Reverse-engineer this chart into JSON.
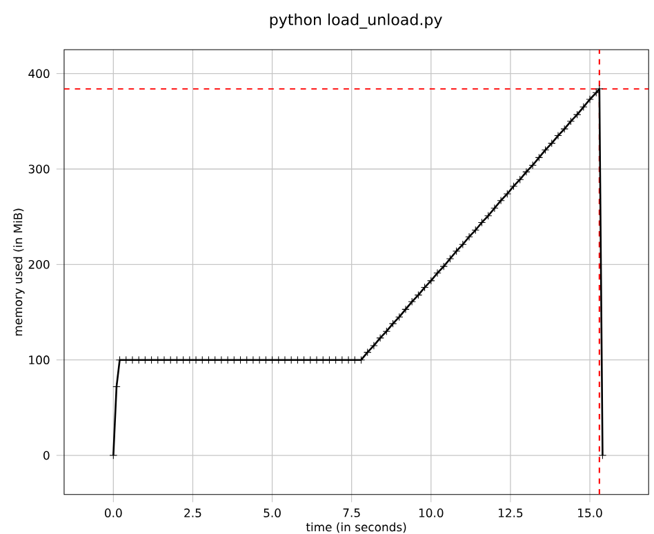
{
  "chart_data": {
    "type": "line",
    "title": "python load_unload.py",
    "xlabel": "time (in seconds)",
    "ylabel": "memory used (in MiB)",
    "x": [
      0,
      0.1,
      0.2,
      0.4,
      0.6,
      0.8,
      1.0,
      1.2,
      1.4,
      1.6,
      1.8,
      2.0,
      2.2,
      2.4,
      2.6,
      2.8,
      3.0,
      3.2,
      3.4,
      3.6,
      3.8,
      4.0,
      4.2,
      4.4,
      4.6,
      4.8,
      5.0,
      5.2,
      5.4,
      5.6,
      5.8,
      6.0,
      6.2,
      6.4,
      6.6,
      6.8,
      7.0,
      7.2,
      7.4,
      7.6,
      7.8,
      8.0,
      8.2,
      8.4,
      8.6,
      8.8,
      9.0,
      9.2,
      9.4,
      9.6,
      9.8,
      10.0,
      10.2,
      10.4,
      10.6,
      10.8,
      11.0,
      11.2,
      11.4,
      11.6,
      11.8,
      12.0,
      12.2,
      12.4,
      12.6,
      12.8,
      13.0,
      13.2,
      13.4,
      13.6,
      13.8,
      14.0,
      14.2,
      14.4,
      14.6,
      14.8,
      15.0,
      15.2,
      15.3,
      15.4
    ],
    "series": [
      {
        "color": "#000000",
        "values": [
          0,
          72,
          100,
          100,
          100,
          100,
          100,
          100,
          100,
          100,
          100,
          100,
          100,
          100,
          100,
          100,
          100,
          100,
          100,
          100,
          100,
          100,
          100,
          100,
          100,
          100,
          100,
          100,
          100,
          100,
          100,
          100,
          100,
          100,
          100,
          100,
          100,
          100,
          100,
          100,
          100,
          108,
          115,
          123,
          130,
          138,
          145,
          153,
          161,
          168,
          176,
          183,
          191,
          198,
          206,
          214,
          221,
          229,
          236,
          244,
          251,
          259,
          267,
          274,
          282,
          289,
          297,
          304,
          312,
          320,
          327,
          335,
          342,
          350,
          357,
          365,
          373,
          380,
          384,
          0
        ]
      }
    ],
    "marker": "cross",
    "line_style": "solid",
    "grid": true,
    "xlim": [
      -1.55,
      16.85
    ],
    "ylim": [
      -41,
      425
    ],
    "xticks": [
      {
        "value": 0,
        "label": "0.0"
      },
      {
        "value": 2.5,
        "label": "2.5"
      },
      {
        "value": 5,
        "label": "5.0"
      },
      {
        "value": 7.5,
        "label": "7.5"
      },
      {
        "value": 10,
        "label": "10.0"
      },
      {
        "value": 12.5,
        "label": "12.5"
      },
      {
        "value": 15,
        "label": "15.0"
      }
    ],
    "yticks": [
      0,
      100,
      200,
      300,
      400
    ],
    "ref_lines": [
      {
        "axis": "y",
        "value": 384,
        "color": "#ff0000",
        "line_style": "dashed"
      },
      {
        "axis": "x",
        "value": 15.3,
        "color": "#ff0000",
        "line_style": "dashed"
      }
    ]
  }
}
